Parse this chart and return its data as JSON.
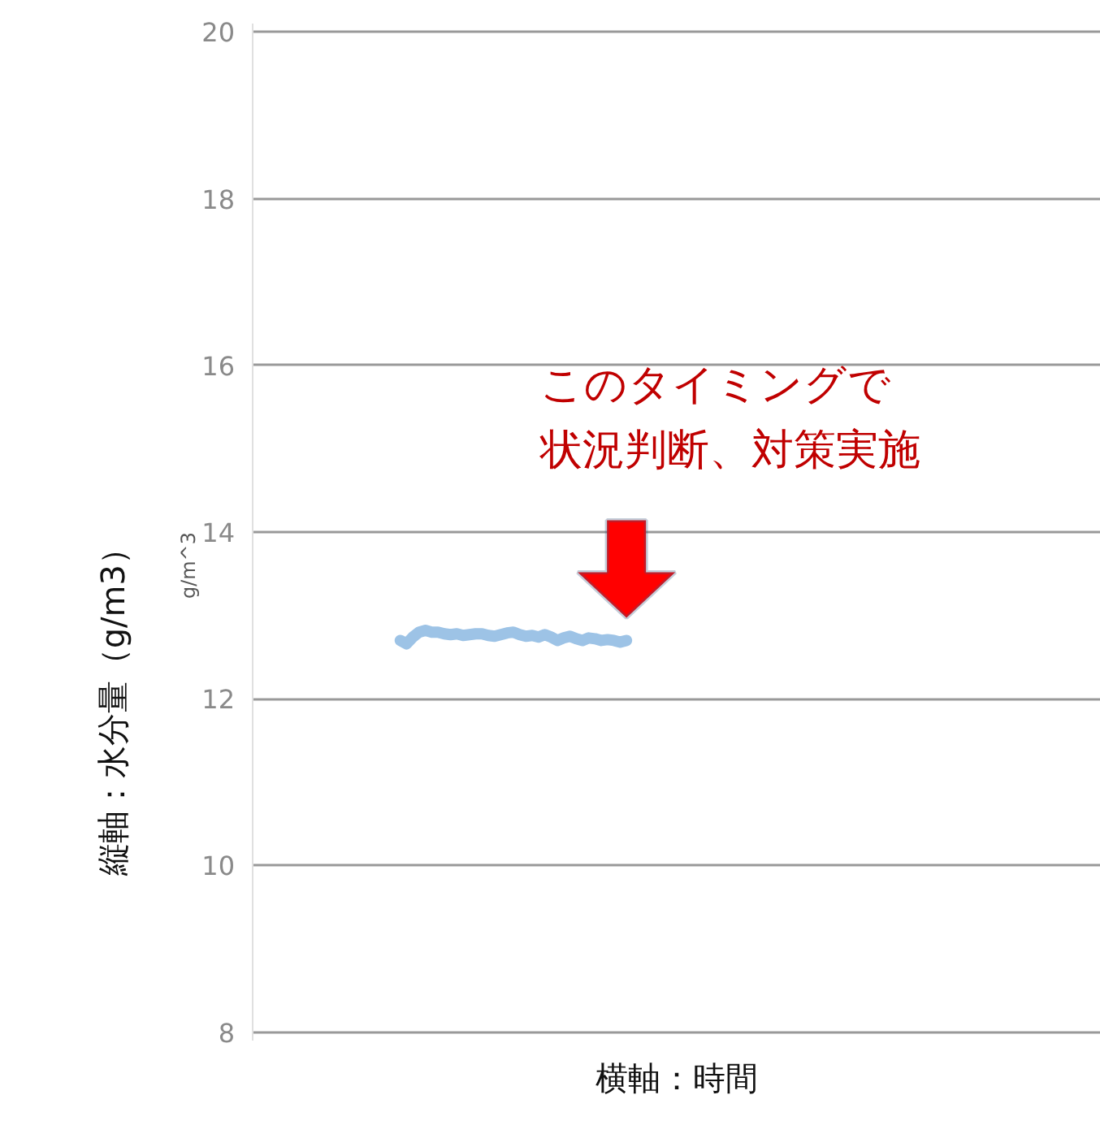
{
  "chart_data": {
    "type": "line",
    "ylabel": "g/m^3",
    "xlabel": "横軸：時間",
    "categories": [
      null,
      null,
      null,
      null,
      null,
      null,
      null,
      null,
      null,
      null,
      null,
      null,
      null,
      null,
      null,
      null,
      null,
      null,
      null,
      null,
      null,
      null,
      null,
      null,
      null,
      null,
      null,
      null,
      null,
      null,
      null,
      null,
      null,
      null,
      null,
      null,
      null,
      null,
      null,
      null,
      null,
      null,
      null,
      null,
      null,
      null,
      null,
      null,
      null,
      null,
      null,
      null,
      null,
      null,
      null,
      null,
      null,
      null,
      null,
      null,
      null,
      null,
      null,
      null,
      null,
      null,
      null,
      null,
      null,
      null,
      null,
      null,
      null,
      null,
      null,
      null,
      null,
      null,
      null,
      null,
      null,
      null,
      null,
      null,
      null,
      null,
      null,
      null,
      null,
      null,
      null,
      null,
      null,
      null,
      null,
      null,
      null,
      null,
      null,
      null,
      null,
      null,
      null,
      null,
      null,
      null,
      null,
      null,
      null,
      null,
      null,
      null,
      null,
      null,
      null,
      null,
      null,
      null,
      null,
      null,
      null,
      null,
      null,
      null,
      null,
      null,
      null,
      null,
      null,
      null,
      null,
      null,
      null,
      null,
      null
    ],
    "series": [
      {
        "color": "#9dc3e6",
        "values": [
          null,
          null,
          null,
          null,
          null,
          null,
          null,
          null,
          null,
          null,
          null,
          null,
          null,
          null,
          null,
          null,
          null,
          null,
          null,
          null,
          null,
          null,
          null,
          12.7,
          12.66,
          12.74,
          12.8,
          12.82,
          12.8,
          12.8,
          12.78,
          12.77,
          12.78,
          12.76,
          12.77,
          12.78,
          12.78,
          12.76,
          12.75,
          12.77,
          12.79,
          12.8,
          12.77,
          12.75,
          12.76,
          12.74,
          12.77,
          12.74,
          12.7,
          12.73,
          12.75,
          12.72,
          12.7,
          12.73,
          12.72,
          12.7,
          12.71,
          12.7,
          12.68,
          12.7,
          null,
          null,
          null,
          null,
          null,
          null,
          null,
          null,
          null,
          null,
          null,
          null,
          null,
          null,
          null,
          null,
          null,
          null,
          null,
          null,
          null,
          null,
          null,
          null,
          null,
          null,
          null,
          null,
          null,
          null,
          null,
          null,
          null,
          null,
          null,
          null,
          null,
          null,
          null,
          null,
          null,
          null,
          null,
          null,
          null,
          null,
          null,
          null,
          null,
          null,
          null,
          null,
          null,
          null,
          null,
          null,
          null,
          null,
          null,
          null,
          null,
          null,
          null,
          null,
          null,
          null,
          null,
          null,
          null,
          null,
          null,
          null,
          null,
          null,
          null
        ]
      }
    ],
    "ylim": [
      7.9,
      20.1
    ],
    "yticks": [
      8,
      10,
      12,
      14,
      16,
      18,
      20
    ],
    "grid": "y",
    "marker": "none",
    "line_style": "solid",
    "tick_labels": "y",
    "annotations": [
      "縦軸：水分量（g/m3）",
      "このタイミングで",
      "状況判断、対策実施"
    ]
  }
}
